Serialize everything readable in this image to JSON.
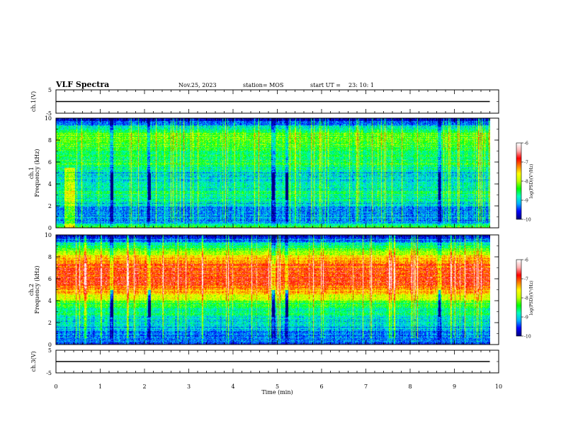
{
  "header": {
    "title": "VLF Spectra",
    "date": "Nov.25, 2023",
    "station": "station= MOS",
    "start_label": "start UT =",
    "start_time": "23: 10: 1"
  },
  "colorbar": {
    "label": "log(PSD)(V²/Hz)",
    "tick_labels": [
      "-6",
      "-7",
      "-8",
      "-9",
      "-10"
    ],
    "colors": [
      "#000080",
      "#0000ff",
      "#00b0ff",
      "#00ffc0",
      "#00ff00",
      "#c0ff00",
      "#ffff00",
      "#ff8000",
      "#ff0000",
      "#ffb0b0",
      "#ffffff"
    ]
  },
  "chart_data": [
    {
      "type": "line",
      "panel": "ch1-voltage",
      "ylabel": "ch.1(V)",
      "ylim": [
        -5,
        5
      ],
      "y_ticks": [
        "5",
        "-5"
      ],
      "xlim": [
        0,
        10
      ],
      "x": [
        0,
        9.8
      ],
      "y": [
        0,
        0
      ]
    },
    {
      "type": "heatmap",
      "panel": "ch1-spectrogram",
      "ylabel_channel": "ch.1",
      "ylabel": "Frequency (kHz)",
      "ylim": [
        0,
        10
      ],
      "y_ticks": [
        "0",
        "2",
        "4",
        "6",
        "8",
        "10"
      ],
      "xlim": [
        0,
        10
      ],
      "time_extent": [
        0,
        9.8
      ],
      "clim": [
        -10,
        -6
      ],
      "freq_profile_khz": [
        0,
        0.5,
        1,
        2,
        3,
        4,
        5,
        5.8,
        6.5,
        7.5,
        8.5,
        9.3,
        10
      ],
      "freq_profile_logpsd": [
        -8.3,
        -9.2,
        -9.3,
        -9.1,
        -8.6,
        -9.0,
        -9.0,
        -8.4,
        -8.6,
        -8.4,
        -8.2,
        -9.0,
        -9.9
      ],
      "gaps_min": [
        1.25,
        2.1,
        4.9,
        5.2,
        8.65
      ],
      "burst_min": [
        0.3
      ]
    },
    {
      "type": "heatmap",
      "panel": "ch2-spectrogram",
      "ylabel_channel": "ch.2",
      "ylabel": "Frequency (kHz)",
      "ylim": [
        0,
        10
      ],
      "y_ticks": [
        "0",
        "2",
        "4",
        "6",
        "8",
        "10"
      ],
      "xlim": [
        0,
        10
      ],
      "time_extent": [
        0,
        9.8
      ],
      "clim": [
        -10,
        -6
      ],
      "freq_profile_khz": [
        0,
        0.5,
        1.5,
        2.5,
        3.2,
        3.8,
        4.5,
        5.5,
        6.5,
        7.5,
        8.3,
        9.2,
        10
      ],
      "freq_profile_logpsd": [
        -9.6,
        -9.3,
        -9.2,
        -8.8,
        -8.6,
        -8.4,
        -7.6,
        -6.9,
        -6.9,
        -7.1,
        -7.9,
        -8.9,
        -9.8
      ],
      "gaps_min": [
        1.25,
        2.1,
        4.9,
        5.2,
        8.65
      ],
      "burst_min": []
    },
    {
      "type": "line",
      "panel": "ch3-voltage",
      "ylabel": "ch.3(V)",
      "ylim": [
        -5,
        5
      ],
      "y_ticks": [
        "5",
        "-5"
      ],
      "xlim": [
        0,
        10
      ],
      "x": [
        0,
        9.8
      ],
      "y": [
        0,
        0
      ],
      "xlabel": "Time (min)",
      "x_ticks": [
        "0",
        "1",
        "2",
        "3",
        "4",
        "5",
        "6",
        "7",
        "8",
        "9",
        "10"
      ]
    }
  ]
}
